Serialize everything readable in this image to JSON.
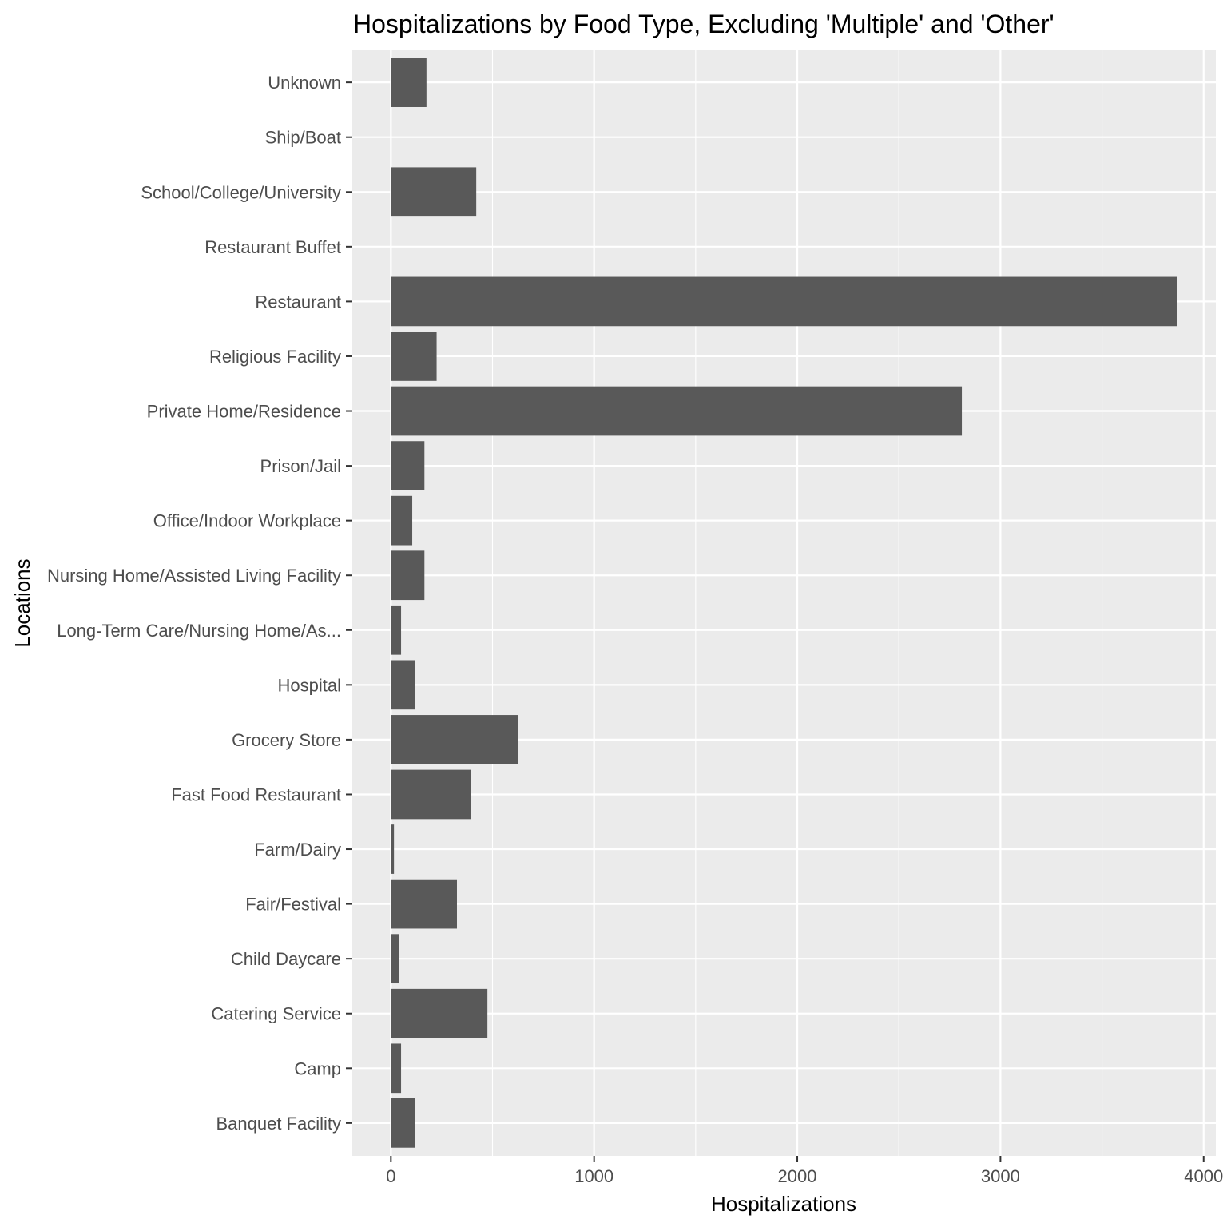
{
  "chart_data": {
    "type": "bar",
    "orientation": "horizontal",
    "title": "Hospitalizations by Food Type, Excluding 'Multiple' and 'Other'",
    "xlabel": "Hospitalizations",
    "ylabel": "Locations",
    "xlim": [
      -190,
      4060
    ],
    "xticks": [
      0,
      1000,
      2000,
      3000,
      4000
    ],
    "xtick_labels": [
      "0",
      "1000",
      "2000",
      "3000",
      "4000"
    ],
    "grid": true,
    "legend": "none",
    "bar_color": "#595959",
    "panel_color": "#ebebeb",
    "categories": [
      "Banquet Facility",
      "Camp",
      "Catering Service",
      "Child Daycare",
      "Fair/Festival",
      "Farm/Dairy",
      "Fast Food Restaurant",
      "Grocery Store",
      "Hospital",
      "Long-Term Care/Nursing Home/As...",
      "Nursing Home/Assisted Living Facility",
      "Office/Indoor Workplace",
      "Prison/Jail",
      "Private Home/Residence",
      "Religious Facility",
      "Restaurant",
      "Restaurant Buffet",
      "School/College/University",
      "Ship/Boat",
      "Unknown"
    ],
    "values": [
      117,
      50,
      475,
      40,
      325,
      15,
      395,
      625,
      120,
      50,
      165,
      105,
      165,
      2810,
      225,
      3870,
      0,
      420,
      0,
      175
    ]
  }
}
